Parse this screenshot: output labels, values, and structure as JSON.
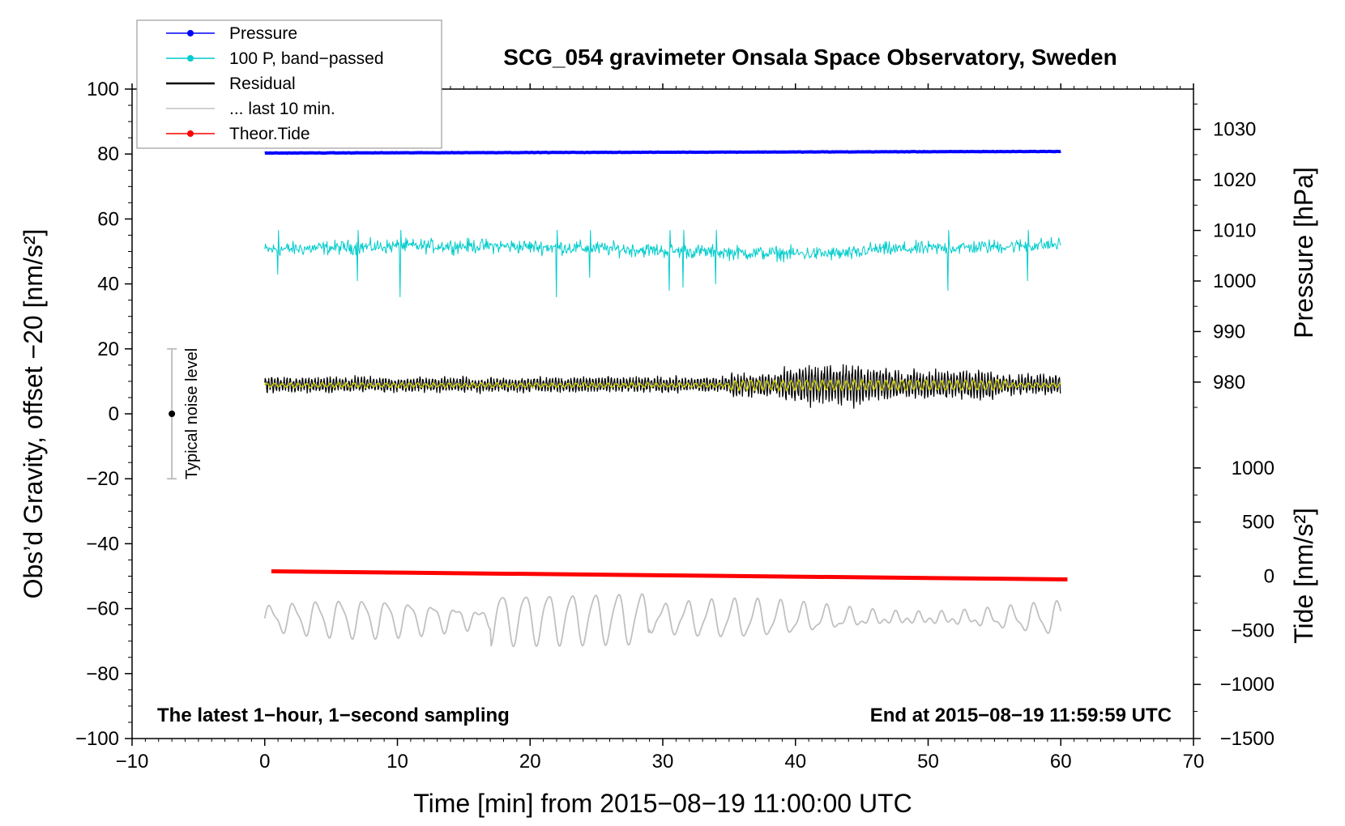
{
  "chart_data": {
    "type": "line",
    "title": "SCG_054 gravimeter Onsala Space Observatory, Sweden",
    "xlabel": "Time [min] from 2015−08−19 11:00:00 UTC",
    "ylabel_left": "Obs’d Gravity, offset −20 [nm/s²]",
    "ylabel_right_pressure": "Pressure [hPa]",
    "ylabel_right_tide": "Tide [nm/s²]",
    "xlim": [
      -10,
      70
    ],
    "ylim_left": [
      -100,
      100
    ],
    "x_ticks": [
      "−10",
      "0",
      "10",
      "20",
      "30",
      "40",
      "50",
      "60",
      "70"
    ],
    "x_tick_values": [
      -10,
      0,
      10,
      20,
      30,
      40,
      50,
      60,
      70
    ],
    "y_left_ticks": [
      "100",
      "80",
      "60",
      "40",
      "20",
      "0",
      "−20",
      "−40",
      "−60",
      "−80",
      "−100"
    ],
    "y_left_tick_values": [
      100,
      80,
      60,
      40,
      20,
      0,
      -20,
      -40,
      -60,
      -80,
      -100
    ],
    "pressure_axis": {
      "ticks": [
        "1030",
        "1020",
        "1010",
        "1000",
        "990",
        "980"
      ],
      "tick_values": [
        1030,
        1020,
        1010,
        1000,
        990,
        980
      ],
      "mapping": {
        "hpa_a": 1000,
        "left_a": 40.9,
        "hpa_b": 1030,
        "left_b": 87.6
      }
    },
    "tide_axis": {
      "ticks": [
        "1000",
        "500",
        "0",
        "−500",
        "−1000",
        "−1500"
      ],
      "tick_values": [
        1000,
        500,
        0,
        -500,
        -1000,
        -1500
      ],
      "mapping": {
        "tide_a": 0,
        "left_a": -50,
        "tide_b": -1500,
        "left_b": -100
      }
    },
    "legend": [
      {
        "label": "Pressure",
        "color": "#0000ff",
        "marker": true
      },
      {
        "label": "100 P, band−passed",
        "color": "#00cccc",
        "marker": true
      },
      {
        "label": "Residual",
        "color": "#000000",
        "marker": false
      },
      {
        "label": "... last 10 min.",
        "color": "#c0c0c0",
        "marker": false
      },
      {
        "label": "Theor.Tide",
        "color": "#ff0000",
        "marker": true
      }
    ],
    "series": [
      {
        "name": "Pressure",
        "color": "#0000ff",
        "x_range": [
          0,
          60
        ],
        "start": 80.3,
        "end": 80.8,
        "noise": 0.25,
        "kind": "smooth"
      },
      {
        "name": "100 P, band-passed",
        "color": "#00cccc",
        "x_range": [
          0,
          60
        ],
        "center": 50.5,
        "noise": 3.2,
        "kind": "noisy",
        "spikes": [
          [
            1,
            43
          ],
          [
            7,
            41
          ],
          [
            10.2,
            36
          ],
          [
            22,
            36
          ],
          [
            24.5,
            42
          ],
          [
            30.5,
            38
          ],
          [
            31.5,
            39
          ],
          [
            34,
            40
          ],
          [
            51.5,
            38
          ],
          [
            57.5,
            41
          ]
        ]
      },
      {
        "name": "Residual",
        "color": "#000000",
        "x_range": [
          0,
          60
        ],
        "center": 9.0,
        "kind": "residual"
      },
      {
        "name": "Residual smoothed",
        "color": "#cccc00",
        "x_range": [
          0,
          60
        ],
        "center": 8.8,
        "kind": "smoothres"
      },
      {
        "name": "... last 10 min.",
        "color": "#c0c0c0",
        "x_range": [
          0,
          60
        ],
        "center": -63,
        "amplitude": 5.5,
        "kind": "oscill"
      },
      {
        "name": "Theor.Tide",
        "color": "#ff0000",
        "x_range": [
          0.5,
          60.5
        ],
        "start": -48.5,
        "end": -51.0,
        "kind": "linear"
      }
    ],
    "noise_bar": {
      "label": "Typical noise level",
      "x": -7,
      "y": 0,
      "low": -20,
      "high": 20
    },
    "annotations": {
      "bottom_left": "The latest 1−hour, 1−second sampling",
      "bottom_right": "End at 2015−08−19 11:59:59 UTC"
    }
  }
}
